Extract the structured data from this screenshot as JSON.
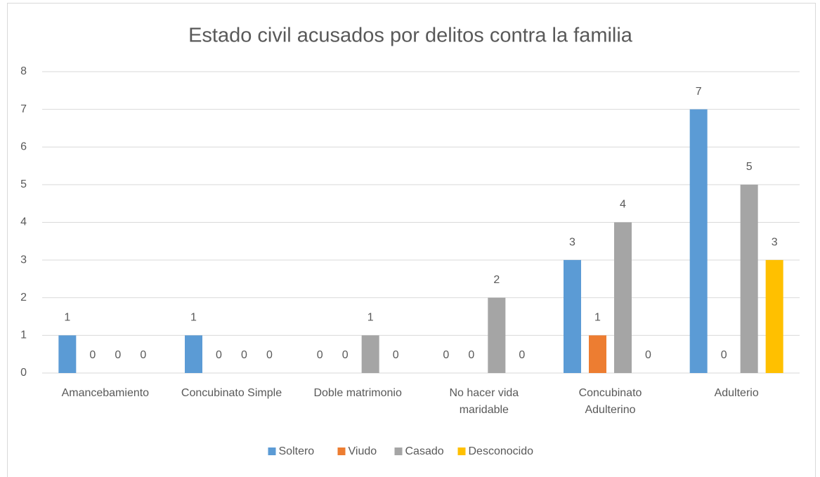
{
  "chart_data": {
    "type": "bar",
    "title": "Estado civil acusados por delitos contra la familia",
    "categories": [
      "Amancebamiento",
      "Concubinato Simple",
      "Doble matrimonio",
      "No hacer vida maridable",
      "Concubinato Adulterino",
      "Adulterio"
    ],
    "series": [
      {
        "name": "Soltero",
        "color": "#5b9bd5",
        "values": [
          1,
          1,
          0,
          0,
          3,
          7
        ]
      },
      {
        "name": "Viudo",
        "color": "#ed7d31",
        "values": [
          0,
          0,
          0,
          0,
          1,
          0
        ]
      },
      {
        "name": "Casado",
        "color": "#a5a5a5",
        "values": [
          0,
          0,
          1,
          2,
          4,
          5
        ]
      },
      {
        "name": "Desconocido",
        "color": "#ffc000",
        "values": [
          0,
          0,
          0,
          0,
          0,
          3
        ]
      }
    ],
    "ylim": [
      0,
      8
    ],
    "yticks": [
      0,
      1,
      2,
      3,
      4,
      5,
      6,
      7,
      8
    ],
    "grid": true,
    "legend": "bottom"
  }
}
